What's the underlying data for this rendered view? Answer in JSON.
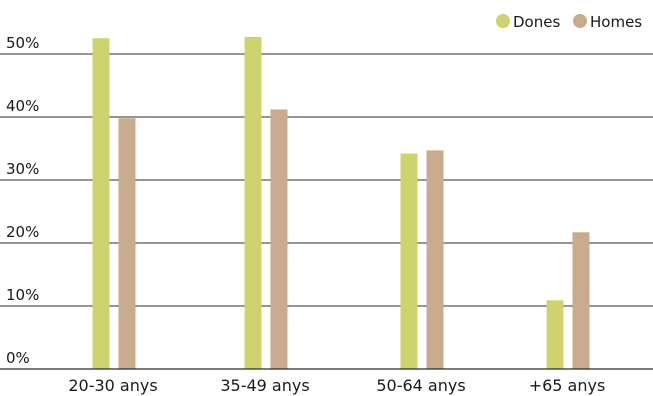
{
  "chart_data": {
    "type": "bar",
    "categories": [
      "20-30 anys",
      "35-49 anys",
      "50-64 anys",
      "+65 anys"
    ],
    "series": [
      {
        "name": "Dones",
        "color": "#cfd36e",
        "values": [
          52.5,
          52.7,
          34.2,
          10.9
        ]
      },
      {
        "name": "Homes",
        "color": "#c8ab8c",
        "values": [
          39.8,
          41.2,
          34.7,
          21.7
        ]
      }
    ],
    "yticks": [
      "0%",
      "10%",
      "20%",
      "30%",
      "40%",
      "50%"
    ],
    "ylim": [
      0,
      55
    ],
    "grid": true,
    "legend_position": "top-right",
    "title": "",
    "xlabel": "",
    "ylabel": ""
  }
}
